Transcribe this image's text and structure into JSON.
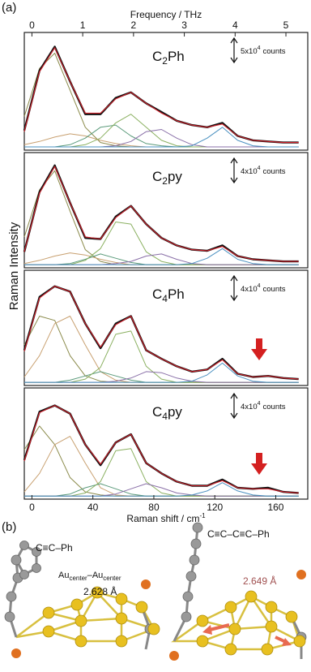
{
  "figure": {
    "label": "(a)",
    "ylabel": "Raman Intensity"
  },
  "chart_data": [
    {
      "type": "line",
      "title": [
        "C",
        "2",
        "Ph"
      ],
      "scale_label": [
        "5x10",
        "4",
        "counts"
      ],
      "x2label": "Frequency / THz",
      "x2lim": [
        -0.15,
        5.43
      ],
      "x2ticks": [
        0,
        1,
        2,
        3,
        4,
        5
      ],
      "xlim": [
        -5,
        181
      ],
      "ylim": [
        -3,
        105
      ],
      "x": [
        -5,
        5,
        15,
        25,
        35,
        45,
        55,
        65,
        75,
        85,
        95,
        105,
        115,
        125,
        135,
        145,
        155,
        165,
        175
      ],
      "series": [
        {
          "color": "#111111",
          "values": [
            15,
            70,
            92,
            60,
            30,
            30,
            45,
            50,
            40,
            32,
            24,
            20,
            18,
            22,
            10,
            6,
            5,
            4,
            4
          ]
        },
        {
          "color": "#d0202a",
          "values": [
            14,
            69,
            91,
            60,
            31,
            31,
            44,
            50,
            40,
            31,
            24,
            20,
            18,
            21,
            10,
            6,
            5,
            4,
            4
          ]
        },
        {
          "color": "#8a8a4a",
          "values": [
            28,
            72,
            86,
            52,
            18,
            4,
            1,
            0,
            0,
            0,
            0,
            0,
            0,
            0,
            0,
            0,
            0,
            0,
            0
          ]
        },
        {
          "color": "#c8a070",
          "values": [
            2,
            5,
            9,
            12,
            10,
            6,
            3,
            1,
            0,
            0,
            0,
            0,
            0,
            0,
            0,
            0,
            0,
            0,
            0
          ]
        },
        {
          "color": "#5a9a7a",
          "values": [
            0,
            0,
            0,
            2,
            8,
            18,
            20,
            10,
            3,
            1,
            0,
            0,
            0,
            0,
            0,
            0,
            0,
            0,
            0
          ]
        },
        {
          "color": "#8ab060",
          "values": [
            0,
            0,
            0,
            0,
            2,
            8,
            22,
            30,
            18,
            6,
            1,
            0,
            0,
            0,
            0,
            0,
            0,
            0,
            0
          ]
        },
        {
          "color": "#8a70a8",
          "values": [
            0,
            0,
            0,
            0,
            0,
            0,
            1,
            5,
            14,
            16,
            8,
            2,
            0,
            0,
            0,
            0,
            0,
            0,
            0
          ]
        },
        {
          "color": "#4a90c0",
          "values": [
            0,
            0,
            0,
            0,
            0,
            0,
            0,
            0,
            0,
            0,
            0,
            1,
            8,
            18,
            6,
            1,
            0,
            0,
            0
          ]
        }
      ]
    },
    {
      "type": "line",
      "title": [
        "C",
        "2",
        "py"
      ],
      "scale_label": [
        "4x10",
        "4",
        "counts"
      ],
      "xlim": [
        -5,
        181
      ],
      "ylim": [
        -3,
        105
      ],
      "x": [
        -5,
        5,
        15,
        25,
        35,
        45,
        55,
        65,
        75,
        85,
        95,
        105,
        115,
        125,
        135,
        145,
        155,
        165,
        175
      ],
      "series": [
        {
          "color": "#111111",
          "values": [
            12,
            68,
            93,
            58,
            25,
            24,
            45,
            55,
            38,
            25,
            18,
            14,
            13,
            18,
            8,
            5,
            4,
            3,
            3
          ]
        },
        {
          "color": "#d0202a",
          "values": [
            12,
            67,
            92,
            58,
            26,
            24,
            44,
            55,
            38,
            25,
            18,
            14,
            13,
            17,
            8,
            5,
            4,
            3,
            3
          ]
        },
        {
          "color": "#8a8a4a",
          "values": [
            26,
            70,
            88,
            50,
            14,
            3,
            0,
            0,
            0,
            0,
            0,
            0,
            0,
            0,
            0,
            0,
            0,
            0,
            0
          ]
        },
        {
          "color": "#c8a070",
          "values": [
            1,
            4,
            8,
            11,
            9,
            5,
            2,
            0,
            0,
            0,
            0,
            0,
            0,
            0,
            0,
            0,
            0,
            0,
            0
          ]
        },
        {
          "color": "#5a9a7a",
          "values": [
            0,
            0,
            0,
            1,
            5,
            10,
            6,
            2,
            0,
            0,
            0,
            0,
            0,
            0,
            0,
            0,
            0,
            0,
            0
          ]
        },
        {
          "color": "#8ab060",
          "values": [
            0,
            0,
            0,
            0,
            4,
            15,
            40,
            38,
            12,
            3,
            0,
            0,
            0,
            0,
            0,
            0,
            0,
            0,
            0
          ]
        },
        {
          "color": "#8a70a8",
          "values": [
            0,
            0,
            0,
            0,
            0,
            0,
            1,
            3,
            8,
            10,
            5,
            1,
            0,
            0,
            0,
            0,
            0,
            0,
            0
          ]
        },
        {
          "color": "#4a90c0",
          "values": [
            0,
            0,
            0,
            0,
            0,
            0,
            0,
            0,
            0,
            0,
            0,
            1,
            6,
            15,
            5,
            1,
            0,
            0,
            0
          ]
        }
      ]
    },
    {
      "type": "line",
      "title": [
        "C",
        "4",
        "Ph"
      ],
      "scale_label": [
        "4x10",
        "4",
        "counts"
      ],
      "xlim": [
        -5,
        181
      ],
      "ylim": [
        -3,
        105
      ],
      "x": [
        -5,
        5,
        15,
        25,
        35,
        45,
        55,
        65,
        75,
        85,
        95,
        105,
        115,
        125,
        135,
        145,
        155,
        165,
        175
      ],
      "series": [
        {
          "color": "#111111",
          "values": [
            30,
            80,
            90,
            85,
            55,
            32,
            55,
            62,
            30,
            22,
            15,
            10,
            12,
            22,
            8,
            5,
            6,
            4,
            3
          ]
        },
        {
          "color": "#d0202a",
          "values": [
            29,
            79,
            90,
            85,
            55,
            33,
            54,
            62,
            30,
            22,
            15,
            10,
            12,
            21,
            8,
            5,
            6,
            4,
            3
          ]
        },
        {
          "color": "#8a8a4a",
          "values": [
            35,
            62,
            58,
            25,
            6,
            1,
            0,
            0,
            0,
            0,
            0,
            0,
            0,
            0,
            0,
            0,
            0,
            0,
            0
          ]
        },
        {
          "color": "#c8a070",
          "values": [
            5,
            25,
            55,
            62,
            35,
            10,
            2,
            0,
            0,
            0,
            0,
            0,
            0,
            0,
            0,
            0,
            0,
            0,
            0
          ]
        },
        {
          "color": "#5a9a7a",
          "values": [
            0,
            0,
            0,
            2,
            6,
            10,
            6,
            2,
            0,
            0,
            0,
            0,
            0,
            0,
            0,
            0,
            0,
            0,
            0
          ]
        },
        {
          "color": "#8ab060",
          "values": [
            0,
            0,
            0,
            0,
            3,
            14,
            45,
            48,
            15,
            3,
            0,
            0,
            0,
            0,
            0,
            0,
            0,
            0,
            0
          ]
        },
        {
          "color": "#8a70a8",
          "values": [
            0,
            0,
            0,
            0,
            0,
            0,
            1,
            4,
            10,
            9,
            4,
            1,
            0,
            0,
            0,
            0,
            0,
            0,
            0
          ]
        },
        {
          "color": "#4a90c0",
          "values": [
            0,
            0,
            0,
            0,
            0,
            0,
            0,
            0,
            0,
            0,
            0,
            1,
            7,
            18,
            6,
            1,
            0,
            0,
            0
          ]
        }
      ]
    },
    {
      "type": "line",
      "title": [
        "C",
        "4",
        "py"
      ],
      "scale_label": [
        "4x10",
        "4",
        "counts"
      ],
      "xlabel": [
        "Raman shift / cm",
        "-1"
      ],
      "xticks": [
        0,
        40,
        80,
        120,
        160
      ],
      "xlim": [
        -5,
        181
      ],
      "ylim": [
        -3,
        105
      ],
      "x": [
        -5,
        5,
        15,
        25,
        35,
        45,
        55,
        65,
        75,
        85,
        95,
        105,
        115,
        125,
        135,
        145,
        155,
        165,
        175
      ],
      "series": [
        {
          "color": "#111111",
          "values": [
            35,
            82,
            88,
            80,
            50,
            30,
            52,
            60,
            32,
            22,
            14,
            10,
            10,
            16,
            8,
            7,
            8,
            4,
            3
          ]
        },
        {
          "color": "#d0202a",
          "values": [
            34,
            81,
            88,
            80,
            50,
            31,
            52,
            60,
            32,
            22,
            14,
            10,
            10,
            15,
            8,
            7,
            7,
            4,
            3
          ]
        },
        {
          "color": "#8a8a4a",
          "values": [
            45,
            68,
            50,
            18,
            4,
            1,
            0,
            0,
            0,
            0,
            0,
            0,
            0,
            0,
            0,
            0,
            0,
            0,
            0
          ]
        },
        {
          "color": "#c8a070",
          "values": [
            4,
            22,
            50,
            58,
            32,
            8,
            1,
            0,
            0,
            0,
            0,
            0,
            0,
            0,
            0,
            0,
            0,
            0,
            0
          ]
        },
        {
          "color": "#5a9a7a",
          "values": [
            0,
            0,
            0,
            2,
            8,
            12,
            7,
            2,
            0,
            0,
            0,
            0,
            0,
            0,
            0,
            0,
            0,
            0,
            0
          ]
        },
        {
          "color": "#8ab060",
          "values": [
            0,
            0,
            0,
            0,
            3,
            14,
            44,
            46,
            14,
            3,
            0,
            0,
            0,
            0,
            0,
            0,
            0,
            0,
            0
          ]
        },
        {
          "color": "#8a70a8",
          "values": [
            0,
            0,
            0,
            0,
            0,
            0,
            2,
            7,
            12,
            8,
            3,
            1,
            0,
            0,
            0,
            0,
            0,
            0,
            0
          ]
        },
        {
          "color": "#4a90c0",
          "values": [
            0,
            0,
            0,
            0,
            0,
            0,
            0,
            0,
            0,
            0,
            0,
            1,
            5,
            13,
            5,
            1,
            0,
            0,
            0
          ]
        }
      ]
    }
  ],
  "structures": {
    "label": "(b)",
    "left": {
      "ligand": "C≡C–Ph",
      "bond_label": [
        "Au",
        "center",
        "–Au",
        "center"
      ],
      "distance": "2.628 Å"
    },
    "right": {
      "ligand": "C≡C–C≡C–Ph",
      "distance": "2.649 Å"
    }
  }
}
